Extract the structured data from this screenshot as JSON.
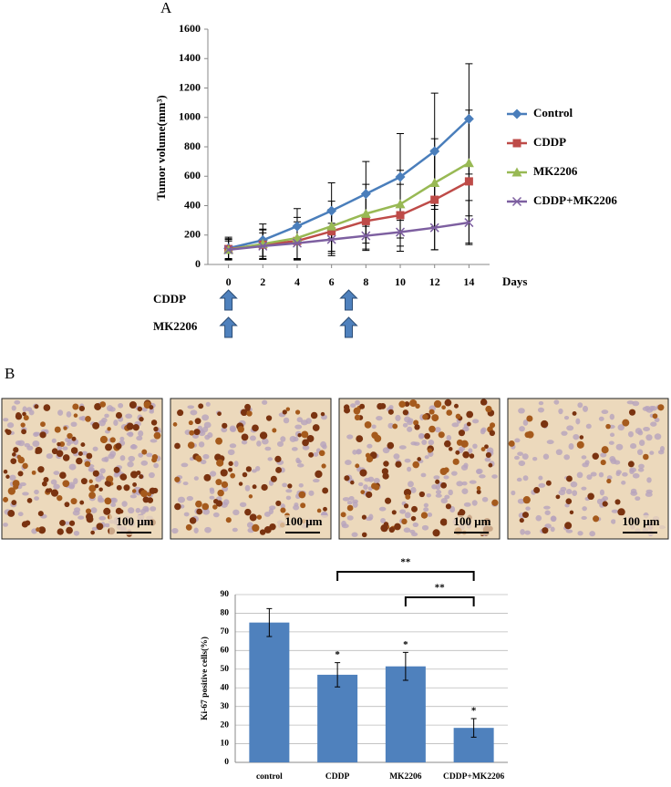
{
  "panel_labels": [
    "A",
    "B"
  ],
  "chart_data": [
    {
      "type": "line",
      "x": [
        0,
        2,
        4,
        6,
        8,
        10,
        12,
        14
      ],
      "xlim": [
        -1.2,
        15.2
      ],
      "xticks": [
        0,
        2,
        4,
        6,
        8,
        10,
        12,
        14
      ],
      "x_label": "Days",
      "y_label": "Tumor volume(mm³)",
      "ylim": [
        0,
        1600
      ],
      "yticks": [
        0,
        200,
        400,
        600,
        800,
        1000,
        1200,
        1400,
        1600
      ],
      "legend": "right",
      "series": [
        {
          "name": "Control",
          "color": "#4a7ebb",
          "marker": "diamond",
          "values": [
            110,
            165,
            260,
            365,
            480,
            595,
            770,
            990
          ],
          "errors": [
            75,
            110,
            120,
            190,
            220,
            295,
            395,
            375
          ]
        },
        {
          "name": "CDDP",
          "color": "#be4b48",
          "marker": "square",
          "values": [
            105,
            135,
            160,
            225,
            295,
            335,
            440,
            565
          ],
          "errors": [
            70,
            100,
            130,
            150,
            190,
            210,
            340,
            420
          ]
        },
        {
          "name": "MK2206",
          "color": "#98b954",
          "marker": "triangle",
          "values": [
            100,
            140,
            180,
            260,
            345,
            410,
            555,
            690
          ],
          "errors": [
            70,
            100,
            140,
            170,
            200,
            230,
            300,
            360
          ]
        },
        {
          "name": "CDDP+MK2206",
          "color": "#7d5fa0",
          "marker": "x",
          "values": [
            100,
            125,
            145,
            170,
            195,
            220,
            250,
            285
          ],
          "errors": [
            60,
            90,
            110,
            110,
            100,
            130,
            150,
            150
          ]
        }
      ],
      "treatments": [
        {
          "name": "CDDP",
          "days": [
            0,
            7
          ]
        },
        {
          "name": "MK2206",
          "days": [
            0,
            7
          ]
        }
      ],
      "arrow_color": "#4f81bd"
    },
    {
      "type": "bar",
      "categories": [
        "control",
        "CDDP",
        "MK2206",
        "CDDP+MK2206"
      ],
      "values": [
        75,
        47,
        51.5,
        18.5
      ],
      "errors": [
        7.5,
        6.5,
        7.5,
        5
      ],
      "color": "#4f81bd",
      "y_label": "Ki-67 positive cells(%)",
      "ylim": [
        0,
        90
      ],
      "yticks": [
        0,
        10,
        20,
        30,
        40,
        50,
        60,
        70,
        80,
        90
      ],
      "grid": true,
      "bar_marks": {
        "CDDP": "*",
        "MK2206": "*",
        "CDDP+MK2206": "*"
      },
      "comparisons": [
        {
          "from": "CDDP",
          "to": "CDDP+MK2206",
          "label": "**"
        },
        {
          "from": "MK2206",
          "to": "CDDP+MK2206",
          "label": "**"
        }
      ]
    }
  ],
  "images": [
    {
      "scale_label": "100 μm"
    },
    {
      "scale_label": "100 μm"
    },
    {
      "scale_label": "100 μm"
    },
    {
      "scale_label": "100 μm"
    }
  ]
}
